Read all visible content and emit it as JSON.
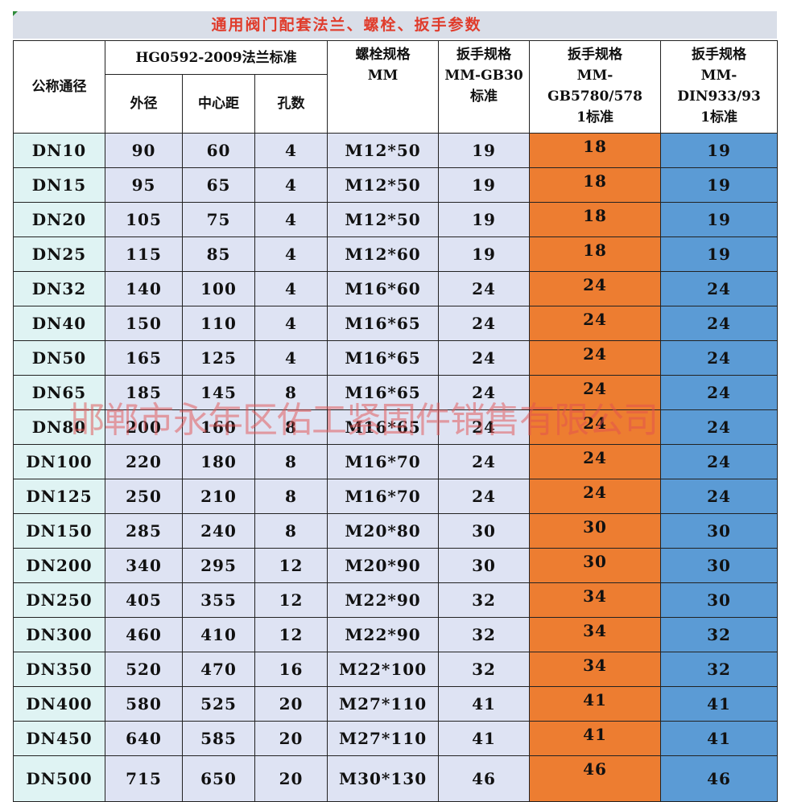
{
  "title": "通用阀门配套法兰、螺栓、扳手参数",
  "watermark": "邯郸市永年区佑工紧固件销售有限公司",
  "table": {
    "header": {
      "nominal": "公称通径",
      "flange_group": "HG0592-2009法兰标准",
      "flange_cols": [
        "外径",
        "中心距",
        "孔数"
      ],
      "bolt": "螺栓规格\nMM",
      "wrench_gb30": "扳手规格\nMM-GB30\n标准",
      "wrench_gb5780": "扳手规格\nMM-\nGB5780/578\n1标准",
      "wrench_din933": "扳手规格\nMM-\nDIN933/93\n1标准"
    },
    "rows": [
      [
        "DN10",
        "90",
        "60",
        "4",
        "M12*50",
        "19",
        "18",
        "19"
      ],
      [
        "DN15",
        "95",
        "65",
        "4",
        "M12*50",
        "19",
        "18",
        "19"
      ],
      [
        "DN20",
        "105",
        "75",
        "4",
        "M12*50",
        "19",
        "18",
        "19"
      ],
      [
        "DN25",
        "115",
        "85",
        "4",
        "M12*60",
        "19",
        "18",
        "19"
      ],
      [
        "DN32",
        "140",
        "100",
        "4",
        "M16*60",
        "24",
        "24",
        "24"
      ],
      [
        "DN40",
        "150",
        "110",
        "4",
        "M16*65",
        "24",
        "24",
        "24"
      ],
      [
        "DN50",
        "165",
        "125",
        "4",
        "M16*65",
        "24",
        "24",
        "24"
      ],
      [
        "DN65",
        "185",
        "145",
        "8",
        "M16*65",
        "24",
        "24",
        "24"
      ],
      [
        "DN80",
        "200",
        "160",
        "8",
        "M16*65",
        "24",
        "24",
        "24"
      ],
      [
        "DN100",
        "220",
        "180",
        "8",
        "M16*70",
        "24",
        "24",
        "24"
      ],
      [
        "DN125",
        "250",
        "210",
        "8",
        "M16*70",
        "24",
        "24",
        "24"
      ],
      [
        "DN150",
        "285",
        "240",
        "8",
        "M20*80",
        "30",
        "30",
        "30"
      ],
      [
        "DN200",
        "340",
        "295",
        "12",
        "M20*90",
        "30",
        "30",
        "30"
      ],
      [
        "DN250",
        "405",
        "355",
        "12",
        "M22*90",
        "32",
        "34",
        "30"
      ],
      [
        "DN300",
        "460",
        "410",
        "12",
        "M22*90",
        "32",
        "34",
        "32"
      ],
      [
        "DN350",
        "520",
        "470",
        "16",
        "M22*100",
        "32",
        "34",
        "32"
      ],
      [
        "DN400",
        "580",
        "525",
        "20",
        "M27*110",
        "41",
        "41",
        "41"
      ],
      [
        "DN450",
        "640",
        "585",
        "20",
        "M27*110",
        "41",
        "41",
        "41"
      ],
      [
        "DN500",
        "715",
        "650",
        "20",
        "M30*130",
        "46",
        "46",
        "46"
      ]
    ]
  }
}
